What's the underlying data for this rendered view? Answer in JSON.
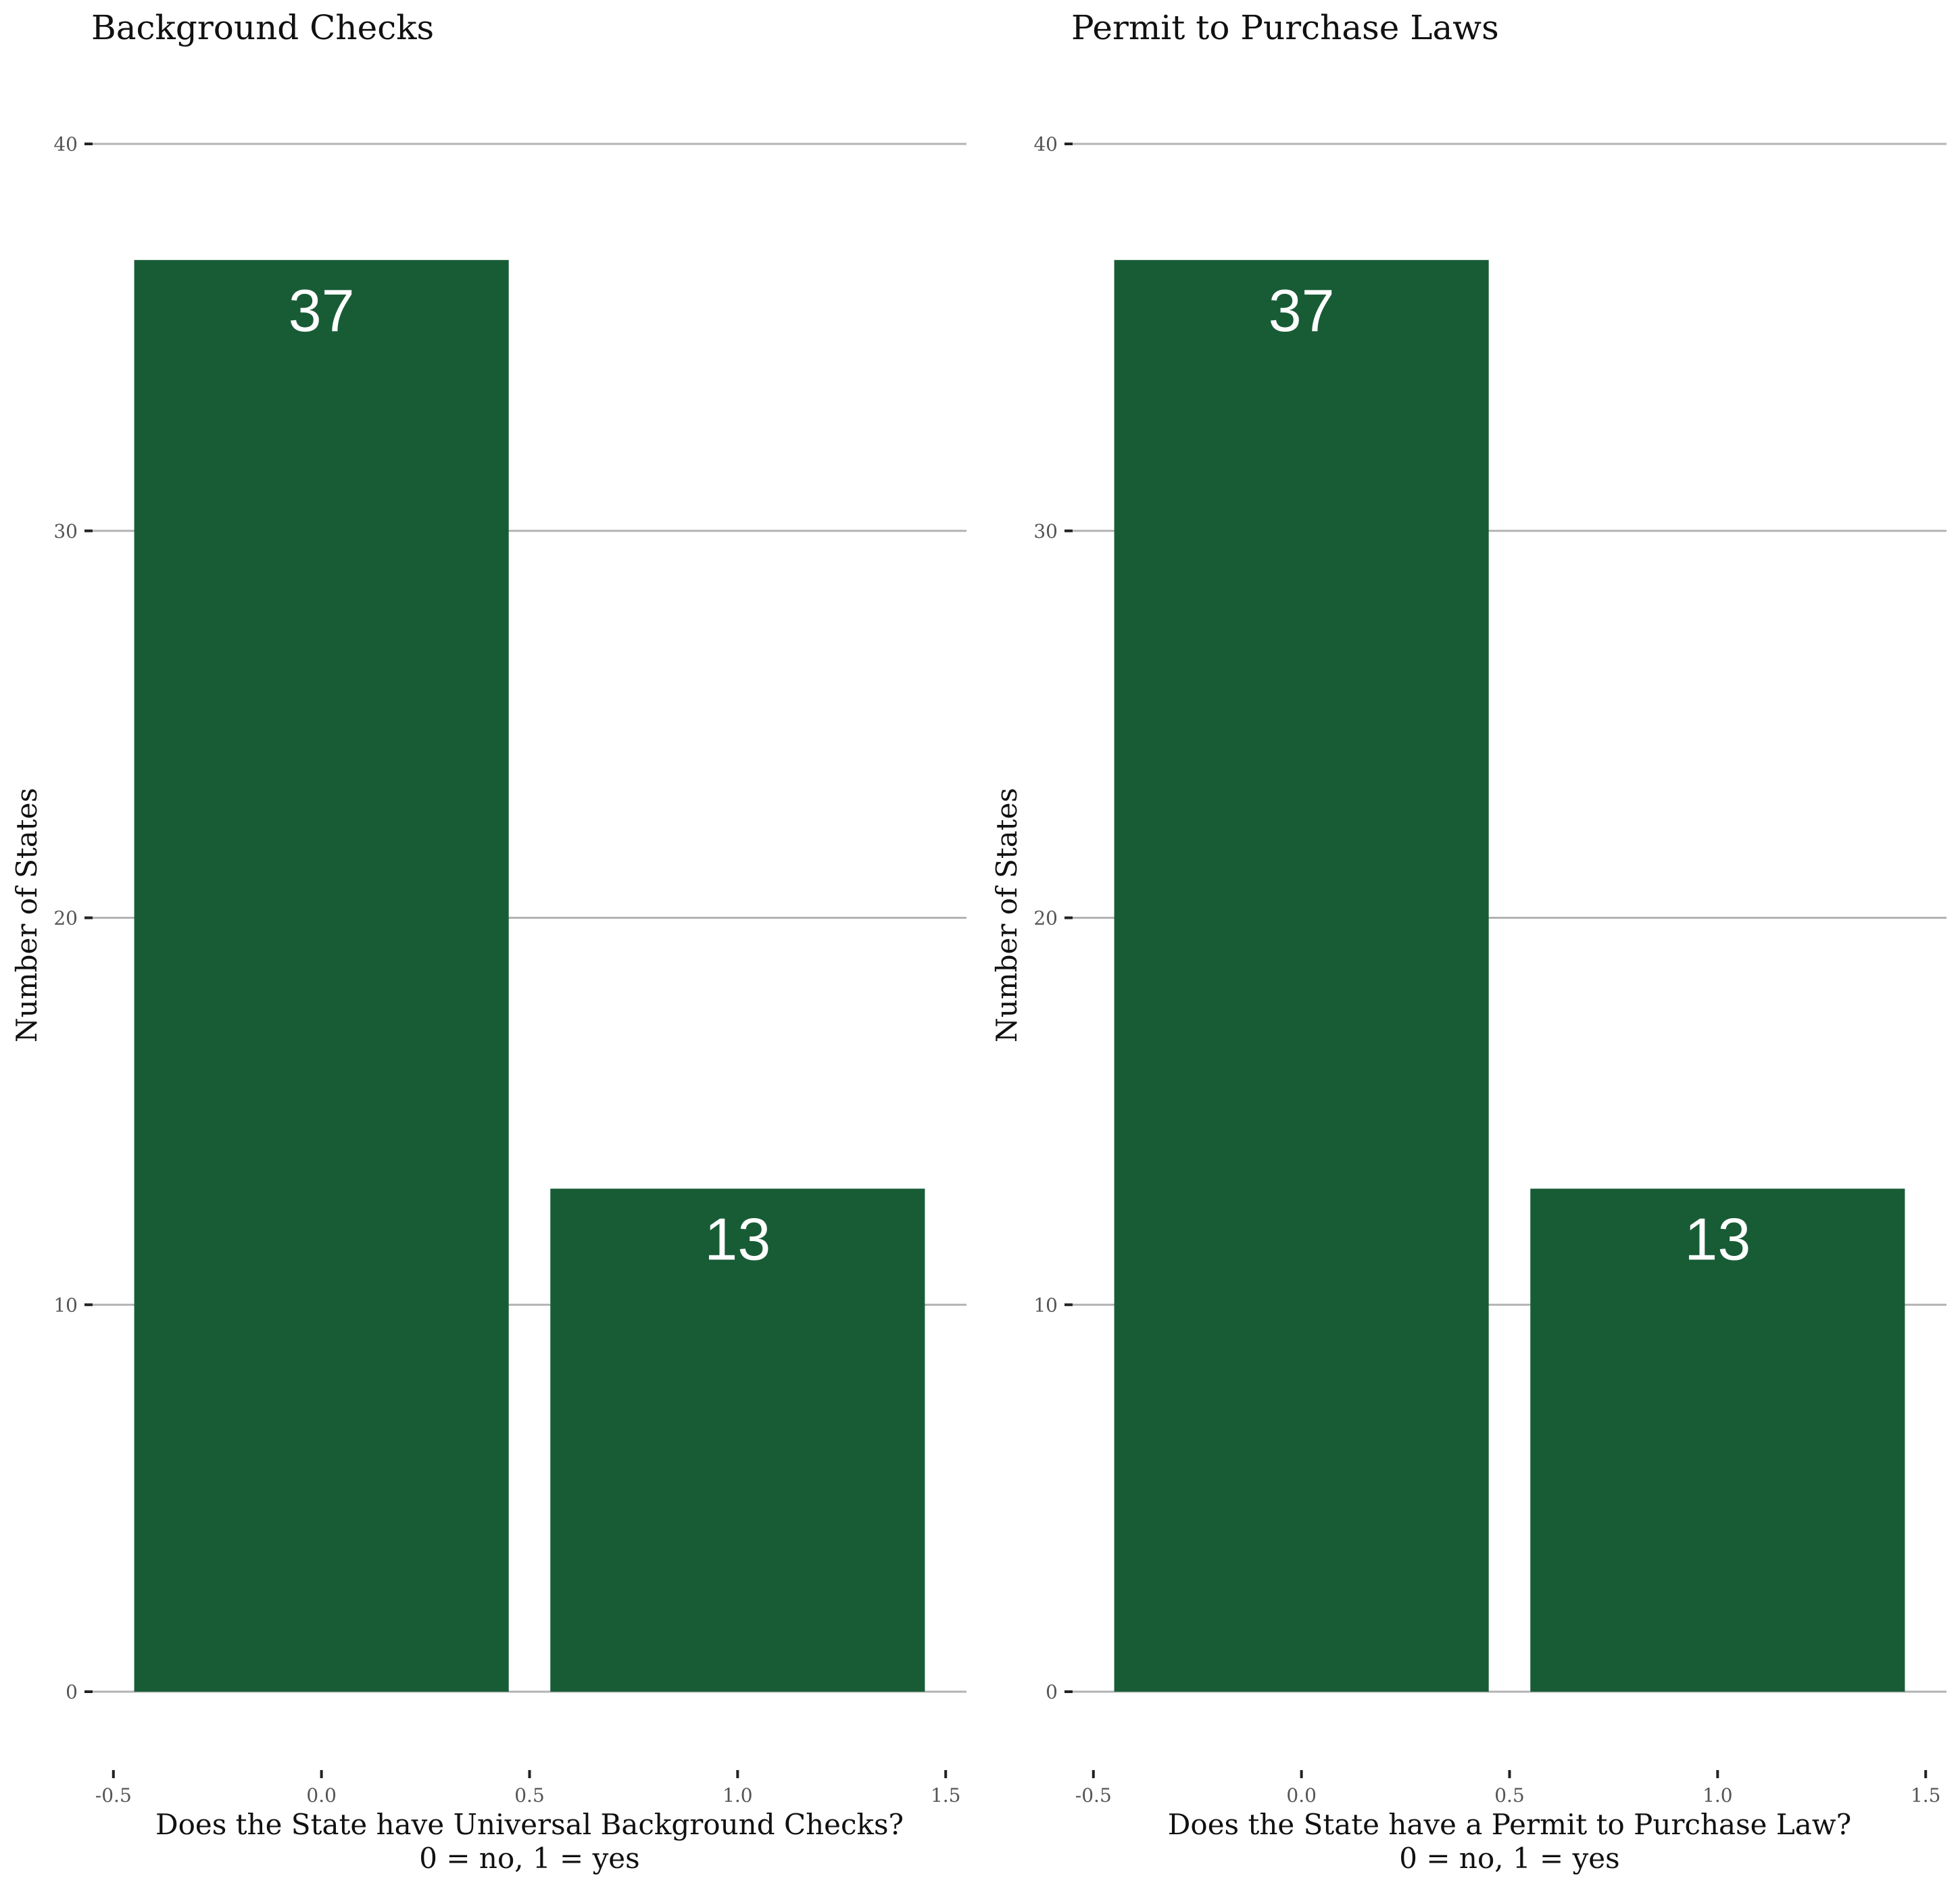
{
  "chart_data": [
    {
      "type": "bar",
      "title": "Background Checks",
      "xlabel": "Does the State have Universal Background Checks?",
      "xlabel_line2": "0 = no, 1 = yes",
      "ylabel": "Number of States",
      "x": [
        0,
        1
      ],
      "values": [
        37,
        13
      ],
      "data_labels": [
        "37",
        "13"
      ],
      "bar_width": 0.9,
      "xlim": [
        -0.55,
        1.55
      ],
      "ylim": [
        0,
        40
      ],
      "xticks": [
        -0.5,
        0.0,
        0.5,
        1.0,
        1.5
      ],
      "xtick_labels": [
        "-0.5",
        "0.0",
        "0.5",
        "1.0",
        "1.5"
      ],
      "yticks": [
        0,
        10,
        20,
        30,
        40
      ],
      "ytick_labels": [
        "0",
        "10",
        "20",
        "30",
        "40"
      ],
      "grid": "horizontal",
      "bar_color": "#185c36"
    },
    {
      "type": "bar",
      "title": "Permit to Purchase Laws",
      "xlabel": "Does the State have a Permit to Purchase Law?",
      "xlabel_line2": "0 = no, 1 = yes",
      "ylabel": "Number of States",
      "x": [
        0,
        1
      ],
      "values": [
        37,
        13
      ],
      "data_labels": [
        "37",
        "13"
      ],
      "bar_width": 0.9,
      "xlim": [
        -0.55,
        1.55
      ],
      "ylim": [
        0,
        40
      ],
      "xticks": [
        -0.5,
        0.0,
        0.5,
        1.0,
        1.5
      ],
      "xtick_labels": [
        "-0.5",
        "0.0",
        "0.5",
        "1.0",
        "1.5"
      ],
      "yticks": [
        0,
        10,
        20,
        30,
        40
      ],
      "ytick_labels": [
        "0",
        "10",
        "20",
        "30",
        "40"
      ],
      "grid": "horizontal",
      "bar_color": "#185c36"
    }
  ]
}
